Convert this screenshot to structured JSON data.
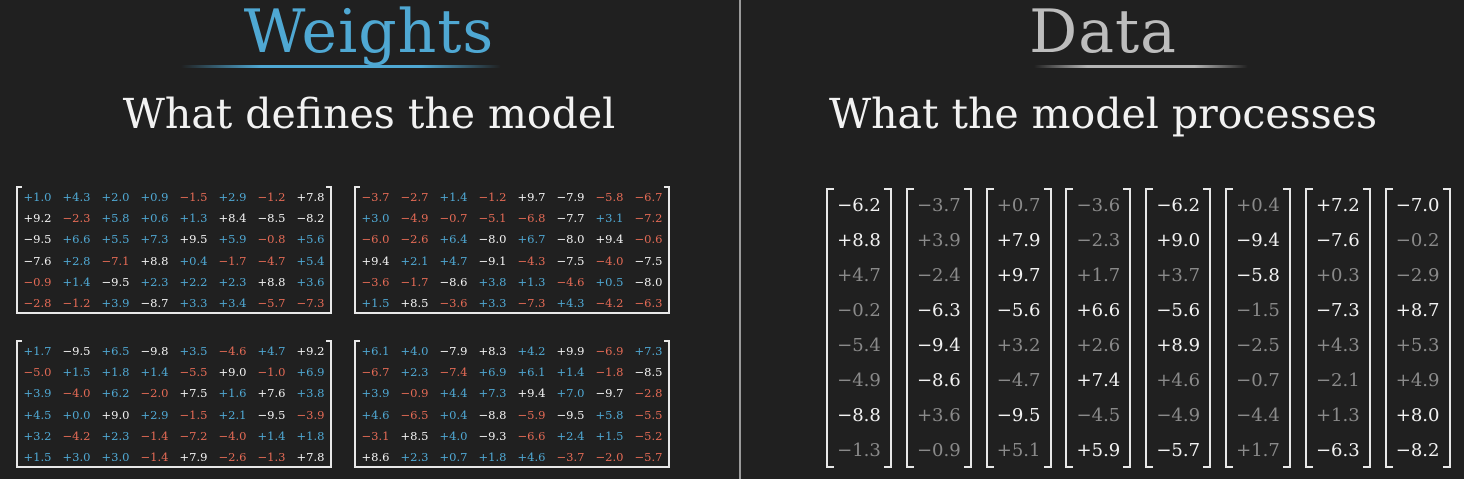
{
  "weights": {
    "title": "Weights",
    "subtitle": "What defines the model",
    "colors": {
      "positive": "#4fa8d3",
      "negative": "#e36a55",
      "strong": "#f2f2f2"
    },
    "matrices": [
      [
        [
          "+1.0",
          "+4.3",
          "+2.0",
          "+0.9",
          "−1.5",
          "+2.9",
          "−1.2",
          "+7.8"
        ],
        [
          "+9.2",
          "−2.3",
          "+5.8",
          "+0.6",
          "+1.3",
          "+8.4",
          "−8.5",
          "−8.2"
        ],
        [
          "−9.5",
          "+6.6",
          "+5.5",
          "+7.3",
          "+9.5",
          "+5.9",
          "−0.8",
          "+5.6"
        ],
        [
          "−7.6",
          "+2.8",
          "−7.1",
          "+8.8",
          "+0.4",
          "−1.7",
          "−4.7",
          "+5.4"
        ],
        [
          "−0.9",
          "+1.4",
          "−9.5",
          "+2.3",
          "+2.2",
          "+2.3",
          "+8.8",
          "+3.6"
        ],
        [
          "−2.8",
          "−1.2",
          "+3.9",
          "−8.7",
          "+3.3",
          "+3.4",
          "−5.7",
          "−7.3"
        ]
      ],
      [
        [
          "−3.7",
          "−2.7",
          "+1.4",
          "−1.2",
          "+9.7",
          "−7.9",
          "−5.8",
          "−6.7"
        ],
        [
          "+3.0",
          "−4.9",
          "−0.7",
          "−5.1",
          "−6.8",
          "−7.7",
          "+3.1",
          "−7.2"
        ],
        [
          "−6.0",
          "−2.6",
          "+6.4",
          "−8.0",
          "+6.7",
          "−8.0",
          "+9.4",
          "−0.6"
        ],
        [
          "+9.4",
          "+2.1",
          "+4.7",
          "−9.1",
          "−4.3",
          "−7.5",
          "−4.0",
          "−7.5"
        ],
        [
          "−3.6",
          "−1.7",
          "−8.6",
          "+3.8",
          "+1.3",
          "−4.6",
          "+0.5",
          "−8.0"
        ],
        [
          "+1.5",
          "+8.5",
          "−3.6",
          "+3.3",
          "−7.3",
          "+4.3",
          "−4.2",
          "−6.3"
        ]
      ],
      [
        [
          "+1.7",
          "−9.5",
          "+6.5",
          "−9.8",
          "+3.5",
          "−4.6",
          "+4.7",
          "+9.2"
        ],
        [
          "−5.0",
          "+1.5",
          "+1.8",
          "+1.4",
          "−5.5",
          "+9.0",
          "−1.0",
          "+6.9"
        ],
        [
          "+3.9",
          "−4.0",
          "+6.2",
          "−2.0",
          "+7.5",
          "+1.6",
          "+7.6",
          "+3.8"
        ],
        [
          "+4.5",
          "+0.0",
          "+9.0",
          "+2.9",
          "−1.5",
          "+2.1",
          "−9.5",
          "−3.9"
        ],
        [
          "+3.2",
          "−4.2",
          "+2.3",
          "−1.4",
          "−7.2",
          "−4.0",
          "+1.4",
          "+1.8"
        ],
        [
          "+1.5",
          "+3.0",
          "+3.0",
          "−1.4",
          "+7.9",
          "−2.6",
          "−1.3",
          "+7.8"
        ]
      ],
      [
        [
          "+6.1",
          "+4.0",
          "−7.9",
          "+8.3",
          "+4.2",
          "+9.9",
          "−6.9",
          "+7.3"
        ],
        [
          "−6.7",
          "+2.3",
          "−7.4",
          "+6.9",
          "+6.1",
          "+1.4",
          "−1.8",
          "−8.5"
        ],
        [
          "+3.9",
          "−0.9",
          "+4.4",
          "+7.3",
          "+9.4",
          "+7.0",
          "−9.7",
          "−2.8"
        ],
        [
          "+4.6",
          "−6.5",
          "+0.4",
          "−8.8",
          "−5.9",
          "−9.5",
          "+5.8",
          "−5.5"
        ],
        [
          "−3.1",
          "+8.5",
          "+4.0",
          "−9.3",
          "−6.6",
          "+2.4",
          "+1.5",
          "−5.2"
        ],
        [
          "+8.6",
          "+2.3",
          "+0.7",
          "+1.8",
          "+4.6",
          "−3.7",
          "−2.0",
          "−5.7"
        ]
      ]
    ]
  },
  "data": {
    "title": "Data",
    "subtitle": "What the model processes",
    "colors": {
      "bright": "#f2f2f2",
      "dim": "#8a8a8a"
    },
    "vectors": [
      [
        "−6.2",
        "+8.8",
        "+4.7",
        "−0.2",
        "−5.4",
        "−4.9",
        "−8.8",
        "−1.3"
      ],
      [
        "−3.7",
        "+3.9",
        "−2.4",
        "−6.3",
        "−9.4",
        "−8.6",
        "+3.6",
        "−0.9"
      ],
      [
        "+0.7",
        "+7.9",
        "+9.7",
        "−5.6",
        "+3.2",
        "−4.7",
        "−9.5",
        "+5.1"
      ],
      [
        "−3.6",
        "−2.3",
        "+1.7",
        "+6.6",
        "+2.6",
        "+7.4",
        "−4.5",
        "+5.9"
      ],
      [
        "−6.2",
        "+9.0",
        "+3.7",
        "−5.6",
        "+8.9",
        "+4.6",
        "−4.9",
        "−5.7"
      ],
      [
        "+0.4",
        "−9.4",
        "−5.8",
        "−1.5",
        "−2.5",
        "−0.7",
        "−4.4",
        "+1.7"
      ],
      [
        "+7.2",
        "−7.6",
        "+0.3",
        "−7.3",
        "+4.3",
        "−2.1",
        "+1.3",
        "−6.3"
      ],
      [
        "−7.0",
        "−0.2",
        "−2.9",
        "+8.7",
        "+5.3",
        "+4.9",
        "+8.0",
        "−8.2"
      ]
    ]
  }
}
